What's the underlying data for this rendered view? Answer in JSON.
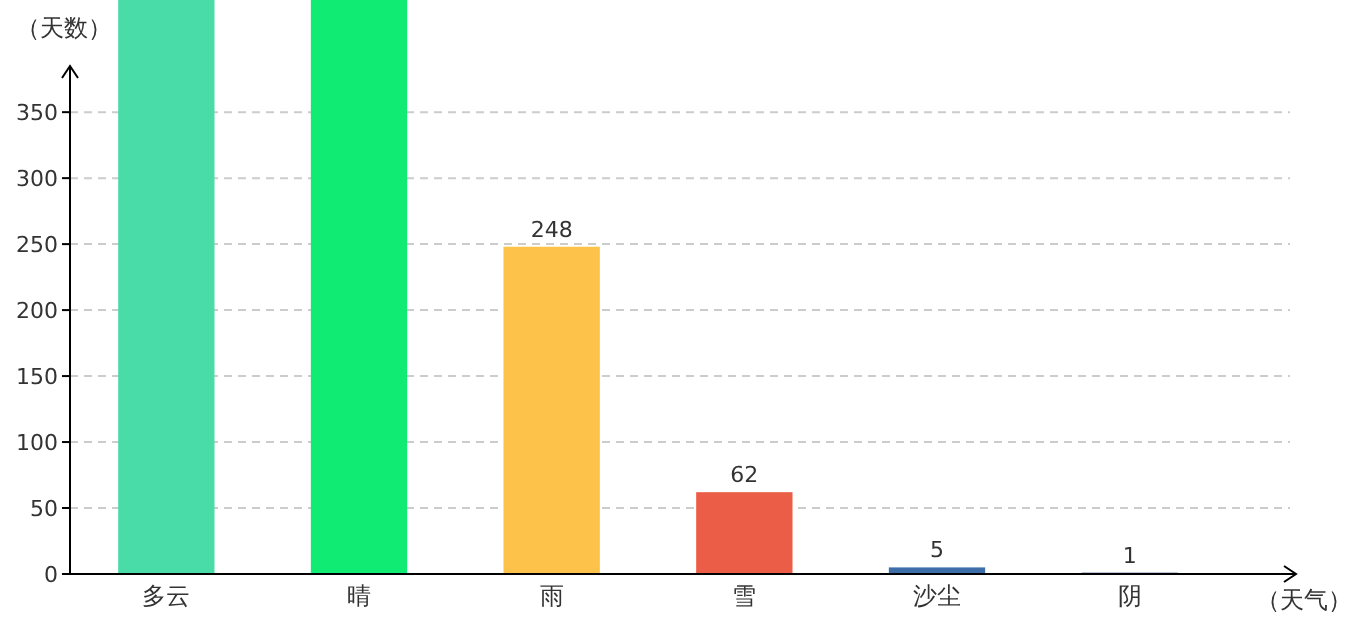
{
  "chart_data": {
    "type": "bar",
    "ylabel": "（天数）",
    "xlabel": "（天气）",
    "categories": [
      "多云",
      "晴",
      "雨",
      "雪",
      "沙尘",
      "阴"
    ],
    "values": [
      435,
      435,
      248,
      62,
      5,
      1
    ],
    "colors": [
      "#4adca8",
      "#10eb73",
      "#fcc24a",
      "#eb5d47",
      "#3d6ea9",
      "#2a4a8a"
    ],
    "value_labels": [
      null,
      null,
      "248",
      "62",
      "5",
      "1"
    ],
    "ylim": [
      0,
      435
    ],
    "yticks": [
      0,
      50,
      100,
      150,
      200,
      250,
      300,
      350
    ],
    "grid": "y"
  }
}
